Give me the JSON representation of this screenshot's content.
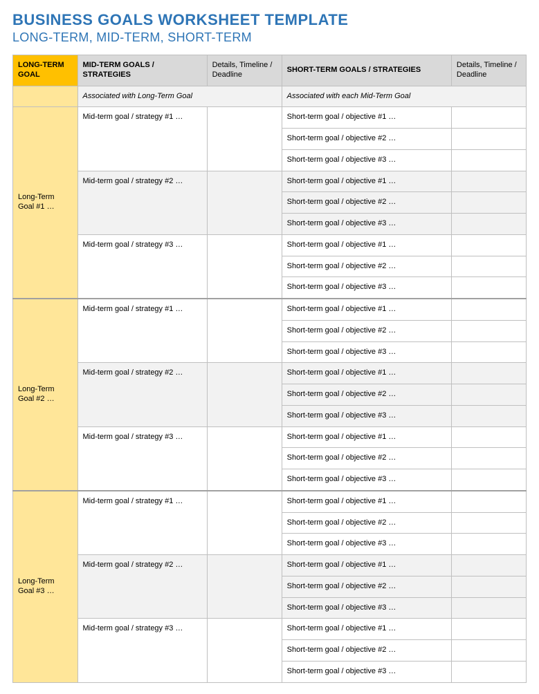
{
  "colors": {
    "title": "#2e75b6",
    "subtitle": "#2e75b6",
    "header_lt_bg": "#ffc000",
    "header_lt_fg": "#000000",
    "header_other_bg": "#d9d9d9",
    "header_other_fg": "#000000",
    "subhead_lt_bg": "#ffe699",
    "subhead_other_bg": "#f2f2f2",
    "lt_side_bg": "#ffe699",
    "row_bg": "#ffffff",
    "row_alt_bg": "#f2f2f2",
    "border": "#bfbfbf"
  },
  "title": "BUSINESS GOALS WORKSHEET TEMPLATE",
  "subtitle": "LONG-TERM, MID-TERM, SHORT-TERM",
  "headers": {
    "lt": "LONG-TERM GOAL",
    "mt": "MID-TERM GOALS / STRATEGIES",
    "md": "Details, Timeline / Deadline",
    "st": "SHORT-TERM GOALS / STRATEGIES",
    "sd": "Details, Timeline / Deadline"
  },
  "subhead": {
    "mt": "Associated with Long-Term Goal",
    "st": "Associated with each Mid-Term Goal"
  },
  "blocks": [
    {
      "lt_label": "Long-Term Goal #1 …",
      "mids": [
        {
          "label": "Mid-term goal / strategy #1 …",
          "details": "",
          "shorts": [
            {
              "label": "Short-term goal / objective #1 …",
              "details": ""
            },
            {
              "label": "Short-term goal / objective #2 …",
              "details": ""
            },
            {
              "label": "Short-term goal / objective #3 …",
              "details": ""
            }
          ]
        },
        {
          "label": "Mid-term goal / strategy #2 …",
          "details": "",
          "shorts": [
            {
              "label": "Short-term goal / objective #1 …",
              "details": ""
            },
            {
              "label": "Short-term goal / objective #2 …",
              "details": ""
            },
            {
              "label": "Short-term goal / objective #3 …",
              "details": ""
            }
          ]
        },
        {
          "label": "Mid-term goal / strategy #3 …",
          "details": "",
          "shorts": [
            {
              "label": "Short-term goal / objective #1 …",
              "details": ""
            },
            {
              "label": "Short-term goal / objective #2 …",
              "details": ""
            },
            {
              "label": "Short-term goal / objective #3 …",
              "details": ""
            }
          ]
        }
      ]
    },
    {
      "lt_label": "Long-Term Goal #2 …",
      "mids": [
        {
          "label": "Mid-term goal / strategy #1 …",
          "details": "",
          "shorts": [
            {
              "label": "Short-term goal / objective #1 …",
              "details": ""
            },
            {
              "label": "Short-term goal / objective #2 …",
              "details": ""
            },
            {
              "label": "Short-term goal / objective #3 …",
              "details": ""
            }
          ]
        },
        {
          "label": "Mid-term goal / strategy #2 …",
          "details": "",
          "shorts": [
            {
              "label": "Short-term goal / objective #1 …",
              "details": ""
            },
            {
              "label": "Short-term goal / objective #2 …",
              "details": ""
            },
            {
              "label": "Short-term goal / objective #3 …",
              "details": ""
            }
          ]
        },
        {
          "label": "Mid-term goal / strategy #3 …",
          "details": "",
          "shorts": [
            {
              "label": "Short-term goal / objective #1 …",
              "details": ""
            },
            {
              "label": "Short-term goal / objective #2 …",
              "details": ""
            },
            {
              "label": "Short-term goal / objective #3 …",
              "details": ""
            }
          ]
        }
      ]
    },
    {
      "lt_label": "Long-Term Goal #3 …",
      "mids": [
        {
          "label": "Mid-term goal / strategy #1 …",
          "details": "",
          "shorts": [
            {
              "label": "Short-term goal / objective #1 …",
              "details": ""
            },
            {
              "label": "Short-term goal / objective #2 …",
              "details": ""
            },
            {
              "label": "Short-term goal / objective #3 …",
              "details": ""
            }
          ]
        },
        {
          "label": "Mid-term goal / strategy #2 …",
          "details": "",
          "shorts": [
            {
              "label": "Short-term goal / objective #1 …",
              "details": ""
            },
            {
              "label": "Short-term goal / objective #2 …",
              "details": ""
            },
            {
              "label": "Short-term goal / objective #3 …",
              "details": ""
            }
          ]
        },
        {
          "label": "Mid-term goal / strategy #3 …",
          "details": "",
          "shorts": [
            {
              "label": "Short-term goal / objective #1 …",
              "details": ""
            },
            {
              "label": "Short-term goal / objective #2 …",
              "details": ""
            },
            {
              "label": "Short-term goal / objective #3 …",
              "details": ""
            }
          ]
        }
      ]
    }
  ]
}
